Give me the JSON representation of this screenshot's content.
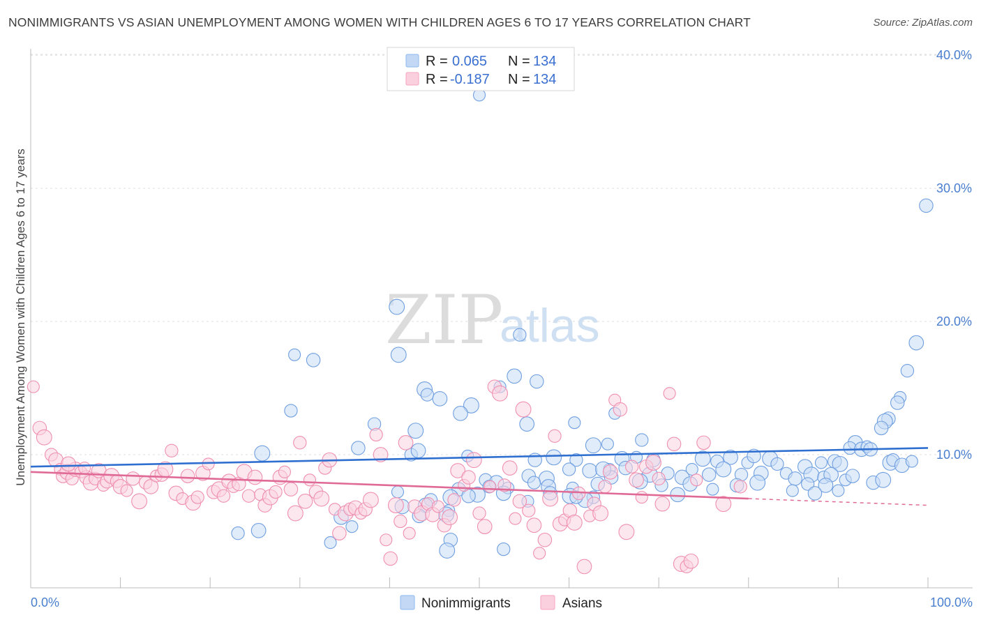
{
  "title": "NONIMMIGRANTS VS ASIAN UNEMPLOYMENT AMONG WOMEN WITH CHILDREN AGES 6 TO 17 YEARS CORRELATION CHART",
  "source": "Source: ZipAtlas.com",
  "watermark": {
    "zip": "ZIP",
    "atlas": "atlas"
  },
  "legend": {
    "r_label": "R =",
    "n_label": "N =",
    "rows": [
      {
        "series": "Nonimmigrants",
        "r": "0.065",
        "n": "134",
        "color": "#8fb8ec"
      },
      {
        "series": "Asians",
        "r": "-0.187",
        "n": "134",
        "color": "#f4a3bd"
      }
    ]
  },
  "chart_data": {
    "type": "scatter",
    "title": "NONIMMIGRANTS VS ASIAN UNEMPLOYMENT AMONG WOMEN WITH CHILDREN AGES 6 TO 17 YEARS CORRELATION CHART",
    "xlabel": "",
    "ylabel": "Unemployment Among Women with Children Ages 6 to 17 years",
    "xlim": [
      0,
      100
    ],
    "ylim": [
      0,
      41
    ],
    "x_tick_labels": [
      "0.0%",
      "100.0%"
    ],
    "y_ticks": [
      10,
      20,
      30,
      40
    ],
    "y_tick_labels": [
      "10.0%",
      "20.0%",
      "30.0%",
      "40.0%"
    ],
    "grid": true,
    "legend_position": "top-center",
    "series": [
      {
        "name": "Nonimmigrants",
        "color": "#8fb8ec",
        "line_color": "#2f6fd0",
        "trend": {
          "x": [
            0,
            100
          ],
          "y": [
            9.1,
            10.5
          ]
        },
        "points": [
          [
            50,
            37
          ],
          [
            99.8,
            28.7
          ],
          [
            40.8,
            21.1
          ],
          [
            54.5,
            19.0
          ],
          [
            98.7,
            18.4
          ],
          [
            29.4,
            17.5
          ],
          [
            31.5,
            17.1
          ],
          [
            41.0,
            17.5
          ],
          [
            97.7,
            16.3
          ],
          [
            53.9,
            15.9
          ],
          [
            52.3,
            15.1
          ],
          [
            56.4,
            15.5
          ],
          [
            43.9,
            14.9
          ],
          [
            44.2,
            14.5
          ],
          [
            45.6,
            14.2
          ],
          [
            96.9,
            14.3
          ],
          [
            96.6,
            13.9
          ],
          [
            49.1,
            13.7
          ],
          [
            29.0,
            13.3
          ],
          [
            47.9,
            13.1
          ],
          [
            65.1,
            13.1
          ],
          [
            95.6,
            12.7
          ],
          [
            95.2,
            12.5
          ],
          [
            38.3,
            12.3
          ],
          [
            55.3,
            12.3
          ],
          [
            60.6,
            12.4
          ],
          [
            94.8,
            12.0
          ],
          [
            42.9,
            11.8
          ],
          [
            68.1,
            11.1
          ],
          [
            91.9,
            10.9
          ],
          [
            64.3,
            10.8
          ],
          [
            36.5,
            10.5
          ],
          [
            62.7,
            10.7
          ],
          [
            91.3,
            10.5
          ],
          [
            92.6,
            10.4
          ],
          [
            93.2,
            10.6
          ],
          [
            93.6,
            10.4
          ],
          [
            25.8,
            10.1
          ],
          [
            42.4,
            10.0
          ],
          [
            43.2,
            10.3
          ],
          [
            48.7,
            9.9
          ],
          [
            56.2,
            9.6
          ],
          [
            58.3,
            9.8
          ],
          [
            60.8,
            9.6
          ],
          [
            65.9,
            9.7
          ],
          [
            67.5,
            9.8
          ],
          [
            69.4,
            9.6
          ],
          [
            74.9,
            9.7
          ],
          [
            76.5,
            9.5
          ],
          [
            78.0,
            9.8
          ],
          [
            79.9,
            9.4
          ],
          [
            80.6,
            9.9
          ],
          [
            82.4,
            9.7
          ],
          [
            83.2,
            9.3
          ],
          [
            86.3,
            9.1
          ],
          [
            88.1,
            9.4
          ],
          [
            89.6,
            9.5
          ],
          [
            90.2,
            9.3
          ],
          [
            60.0,
            8.9
          ],
          [
            62.3,
            8.8
          ],
          [
            64.5,
            8.9
          ],
          [
            66.3,
            9.0
          ],
          [
            69.0,
            8.5
          ],
          [
            71.0,
            8.6
          ],
          [
            72.6,
            8.3
          ],
          [
            73.7,
            8.9
          ],
          [
            75.6,
            8.5
          ],
          [
            77.2,
            8.9
          ],
          [
            79.2,
            8.5
          ],
          [
            81.4,
            8.6
          ],
          [
            84.2,
            8.6
          ],
          [
            85.2,
            8.2
          ],
          [
            87.0,
            8.5
          ],
          [
            88.4,
            8.3
          ],
          [
            89.2,
            8.5
          ],
          [
            90.8,
            8.1
          ],
          [
            91.6,
            8.4
          ],
          [
            95.8,
            9.4
          ],
          [
            96.1,
            9.6
          ],
          [
            97.1,
            9.2
          ],
          [
            98.2,
            9.5
          ],
          [
            55.5,
            8.4
          ],
          [
            57.5,
            8.2
          ],
          [
            56.1,
            7.9
          ],
          [
            57.7,
            7.6
          ],
          [
            60.4,
            7.5
          ],
          [
            63.2,
            7.8
          ],
          [
            67.9,
            8.0
          ],
          [
            70.3,
            7.7
          ],
          [
            73.5,
            7.8
          ],
          [
            76.0,
            7.4
          ],
          [
            78.7,
            7.7
          ],
          [
            81.0,
            7.9
          ],
          [
            86.6,
            7.8
          ],
          [
            88.6,
            7.7
          ],
          [
            90.0,
            7.3
          ],
          [
            93.9,
            7.9
          ],
          [
            95.0,
            8.1
          ],
          [
            50.7,
            8.1
          ],
          [
            51.9,
            7.9
          ],
          [
            53.2,
            7.5
          ],
          [
            47.7,
            7.4
          ],
          [
            49.8,
            7.0
          ],
          [
            51.1,
            7.6
          ],
          [
            52.7,
            7.1
          ],
          [
            55.4,
            6.5
          ],
          [
            48.8,
            6.9
          ],
          [
            46.8,
            6.8
          ],
          [
            44.6,
            6.6
          ],
          [
            44.0,
            6.2
          ],
          [
            46.6,
            5.8
          ],
          [
            57.9,
            7.1
          ],
          [
            60.1,
            6.9
          ],
          [
            62.7,
            6.8
          ],
          [
            72.1,
            7.0
          ],
          [
            84.9,
            7.3
          ],
          [
            87.4,
            7.1
          ],
          [
            61.8,
            6.6
          ],
          [
            60.8,
            6.8
          ],
          [
            34.6,
            5.3
          ],
          [
            35.8,
            4.6
          ],
          [
            43.3,
            5.4
          ],
          [
            46.3,
            5.5
          ],
          [
            23.1,
            4.1
          ],
          [
            25.4,
            4.3
          ],
          [
            33.4,
            3.4
          ],
          [
            46.8,
            3.6
          ],
          [
            46.4,
            2.8
          ],
          [
            52.7,
            2.9
          ],
          [
            41.4,
            6.1
          ],
          [
            40.9,
            7.2
          ],
          [
            64.7,
            8.3
          ],
          [
            63.8,
            8.9
          ]
        ]
      },
      {
        "name": "Asians",
        "color": "#f4a3bd",
        "line_color": "#e06a96",
        "trend": {
          "x": [
            0,
            80
          ],
          "y": [
            8.7,
            6.7
          ]
        },
        "trend_dashed": {
          "x": [
            80,
            100
          ],
          "y": [
            6.7,
            6.2
          ]
        },
        "points": [
          [
            0.3,
            15.1
          ],
          [
            1.0,
            12.0
          ],
          [
            1.5,
            11.3
          ],
          [
            2.3,
            10.0
          ],
          [
            2.8,
            9.6
          ],
          [
            3.3,
            8.9
          ],
          [
            3.6,
            8.4
          ],
          [
            4.1,
            8.7
          ],
          [
            4.6,
            8.2
          ],
          [
            5.0,
            8.9
          ],
          [
            5.6,
            8.7
          ],
          [
            6.2,
            8.3
          ],
          [
            6.7,
            7.9
          ],
          [
            7.2,
            8.2
          ],
          [
            7.6,
            8.8
          ],
          [
            8.1,
            7.7
          ],
          [
            8.5,
            8.0
          ],
          [
            9.0,
            8.4
          ],
          [
            9.6,
            8.0
          ],
          [
            10.0,
            7.6
          ],
          [
            10.7,
            7.3
          ],
          [
            11.4,
            8.2
          ],
          [
            12.1,
            6.5
          ],
          [
            12.8,
            7.9
          ],
          [
            13.4,
            7.6
          ],
          [
            14.0,
            8.4
          ],
          [
            14.6,
            8.5
          ],
          [
            15.0,
            8.9
          ],
          [
            15.7,
            10.3
          ],
          [
            16.2,
            7.1
          ],
          [
            16.9,
            6.7
          ],
          [
            17.5,
            8.4
          ],
          [
            18.1,
            6.4
          ],
          [
            18.6,
            6.8
          ],
          [
            19.2,
            8.6
          ],
          [
            19.8,
            9.3
          ],
          [
            20.4,
            7.2
          ],
          [
            21.0,
            7.4
          ],
          [
            21.5,
            6.9
          ],
          [
            22.1,
            8.0
          ],
          [
            22.6,
            7.6
          ],
          [
            23.2,
            7.8
          ],
          [
            23.8,
            8.7
          ],
          [
            24.3,
            6.9
          ],
          [
            25.0,
            8.3
          ],
          [
            25.6,
            7.0
          ],
          [
            26.1,
            6.2
          ],
          [
            26.7,
            6.8
          ],
          [
            27.3,
            7.2
          ],
          [
            27.8,
            8.3
          ],
          [
            28.3,
            8.7
          ],
          [
            29.0,
            7.4
          ],
          [
            29.5,
            5.6
          ],
          [
            30.0,
            10.9
          ],
          [
            30.6,
            6.5
          ],
          [
            31.1,
            8.1
          ],
          [
            31.8,
            7.2
          ],
          [
            32.4,
            6.7
          ],
          [
            32.8,
            9.0
          ],
          [
            33.3,
            9.6
          ],
          [
            33.9,
            5.9
          ],
          [
            34.4,
            4.1
          ],
          [
            35.1,
            5.6
          ],
          [
            35.6,
            5.9
          ],
          [
            36.2,
            6.0
          ],
          [
            36.8,
            5.6
          ],
          [
            37.3,
            5.9
          ],
          [
            37.9,
            6.6
          ],
          [
            38.5,
            11.5
          ],
          [
            39.0,
            10.0
          ],
          [
            39.6,
            3.6
          ],
          [
            40.1,
            2.2
          ],
          [
            40.7,
            6.2
          ],
          [
            41.2,
            5.0
          ],
          [
            41.8,
            10.9
          ],
          [
            42.2,
            4.1
          ],
          [
            42.8,
            6.1
          ],
          [
            43.6,
            5.6
          ],
          [
            44.3,
            6.3
          ],
          [
            44.8,
            5.5
          ],
          [
            45.4,
            6.1
          ],
          [
            46.1,
            4.7
          ],
          [
            46.7,
            5.3
          ],
          [
            47.2,
            6.6
          ],
          [
            47.6,
            8.8
          ],
          [
            48.3,
            7.7
          ],
          [
            48.8,
            8.3
          ],
          [
            49.4,
            9.6
          ],
          [
            50.0,
            5.6
          ],
          [
            50.6,
            4.6
          ],
          [
            51.2,
            7.6
          ],
          [
            51.7,
            15.1
          ],
          [
            52.3,
            14.6
          ],
          [
            52.8,
            7.7
          ],
          [
            53.4,
            9.0
          ],
          [
            54.0,
            5.2
          ],
          [
            54.5,
            6.5
          ],
          [
            54.9,
            13.4
          ],
          [
            55.5,
            5.8
          ],
          [
            56.1,
            4.7
          ],
          [
            56.7,
            2.6
          ],
          [
            57.3,
            3.6
          ],
          [
            57.9,
            6.7
          ],
          [
            58.4,
            11.4
          ],
          [
            59.0,
            4.8
          ],
          [
            59.5,
            5.1
          ],
          [
            60.1,
            5.8
          ],
          [
            60.6,
            4.9
          ],
          [
            61.1,
            7.1
          ],
          [
            61.7,
            1.6
          ],
          [
            62.3,
            5.4
          ],
          [
            62.8,
            6.3
          ],
          [
            63.5,
            5.6
          ],
          [
            64.0,
            7.6
          ],
          [
            64.6,
            8.7
          ],
          [
            65.1,
            14.1
          ],
          [
            65.7,
            13.4
          ],
          [
            66.4,
            4.2
          ],
          [
            67.0,
            9.1
          ],
          [
            67.5,
            8.1
          ],
          [
            68.1,
            6.8
          ],
          [
            68.6,
            9.1
          ],
          [
            69.4,
            9.4
          ],
          [
            70.0,
            8.2
          ],
          [
            70.4,
            6.3
          ],
          [
            71.2,
            14.6
          ],
          [
            71.7,
            10.8
          ],
          [
            72.5,
            1.8
          ],
          [
            73.1,
            1.6
          ],
          [
            73.6,
            2.0
          ],
          [
            74.2,
            8.1
          ],
          [
            75.0,
            10.9
          ],
          [
            77.2,
            6.3
          ],
          [
            79.1,
            7.6
          ],
          [
            4.2,
            9.3
          ],
          [
            6.0,
            9.0
          ]
        ]
      }
    ]
  }
}
